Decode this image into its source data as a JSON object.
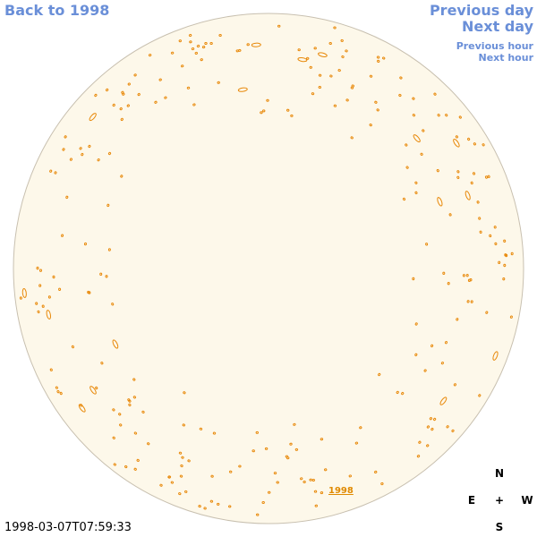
{
  "nav": {
    "back": "Back to 1998",
    "previous_day": "Previous day",
    "next_day": "Next day",
    "previous_hour": "Previous hour",
    "next_hour": "Next hour"
  },
  "image": {
    "timestamp": "1998-03-07T07:59:33",
    "year_label": "1998"
  },
  "compass": {
    "north": "N",
    "east": "E",
    "center": "+",
    "west": "W",
    "south": "S"
  }
}
